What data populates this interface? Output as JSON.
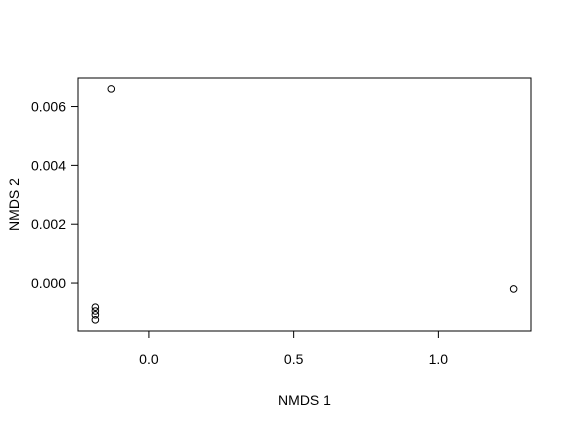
{
  "chart_data": {
    "type": "scatter",
    "title": "",
    "xlabel": "NMDS 1",
    "ylabel": "NMDS 2",
    "xlim": [
      -0.245,
      1.32
    ],
    "ylim": [
      -0.00163,
      0.00697
    ],
    "x_ticks": [
      {
        "value": 0.0,
        "label": "0.0"
      },
      {
        "value": 0.5,
        "label": "0.5"
      },
      {
        "value": 1.0,
        "label": "1.0"
      }
    ],
    "y_ticks": [
      {
        "value": 0.0,
        "label": "0.000"
      },
      {
        "value": 0.002,
        "label": "0.002"
      },
      {
        "value": 0.004,
        "label": "0.004"
      },
      {
        "value": 0.006,
        "label": "0.006"
      }
    ],
    "grid": false,
    "legend": "none",
    "point_style": "open-circle",
    "colors": {
      "points": "#000000",
      "axes": "#000000",
      "background": "#ffffff"
    },
    "points": [
      {
        "x": -0.13,
        "y": 0.0066
      },
      {
        "x": -0.185,
        "y": -0.00082
      },
      {
        "x": -0.185,
        "y": -0.00095
      },
      {
        "x": -0.185,
        "y": -0.00108
      },
      {
        "x": -0.185,
        "y": -0.00125
      },
      {
        "x": 1.26,
        "y": -0.0002
      }
    ]
  }
}
